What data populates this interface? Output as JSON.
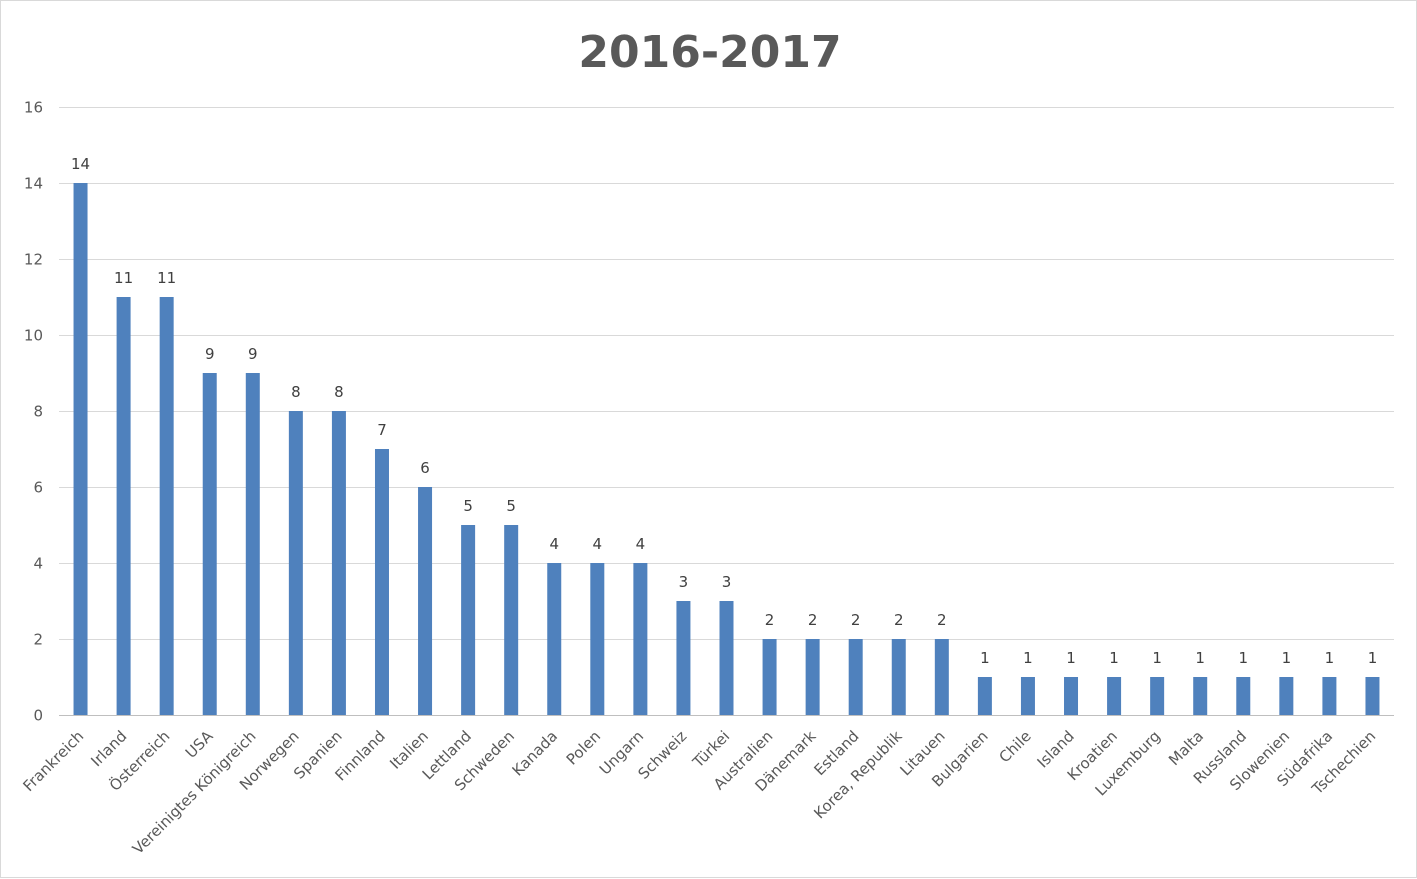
{
  "chart_data": {
    "type": "bar",
    "title": "2016-2017",
    "xlabel": "",
    "ylabel": "",
    "ylim": [
      0,
      16
    ],
    "yticks": [
      0,
      2,
      4,
      6,
      8,
      10,
      12,
      14,
      16
    ],
    "grid": true,
    "legend": "none",
    "bar_color": "#4f81bd",
    "categories": [
      "Frankreich",
      "Irland",
      "Österreich",
      "USA",
      "Vereinigtes Königreich",
      "Norwegen",
      "Spanien",
      "Finnland",
      "Italien",
      "Lettland",
      "Schweden",
      "Kanada",
      "Polen",
      "Ungarn",
      "Schweiz",
      "Türkei",
      "Australien",
      "Dänemark",
      "Estland",
      "Korea, Republik",
      "Litauen",
      "Bulgarien",
      "Chile",
      "Island",
      "Kroatien",
      "Luxemburg",
      "Malta",
      "Russland",
      "Slowenien",
      "Südafrika",
      "Tschechien"
    ],
    "values": [
      14,
      11,
      11,
      9,
      9,
      8,
      8,
      7,
      6,
      5,
      5,
      4,
      4,
      4,
      3,
      3,
      2,
      2,
      2,
      2,
      2,
      1,
      1,
      1,
      1,
      1,
      1,
      1,
      1,
      1,
      1
    ]
  }
}
